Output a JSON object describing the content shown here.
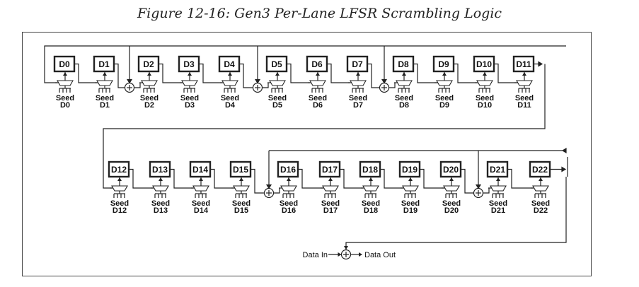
{
  "figure": {
    "caption": "Figure 12-16: Gen3 Per-Lane LFSR Scrambling Logic"
  },
  "registers": [
    {
      "label": "D0",
      "seed_word": "Seed",
      "seed_id": "D0"
    },
    {
      "label": "D1",
      "seed_word": "Seed",
      "seed_id": "D1"
    },
    {
      "label": "D2",
      "seed_word": "Seed",
      "seed_id": "D2"
    },
    {
      "label": "D3",
      "seed_word": "Seed",
      "seed_id": "D3"
    },
    {
      "label": "D4",
      "seed_word": "Seed",
      "seed_id": "D4"
    },
    {
      "label": "D5",
      "seed_word": "Seed",
      "seed_id": "D5"
    },
    {
      "label": "D6",
      "seed_word": "Seed",
      "seed_id": "D6"
    },
    {
      "label": "D7",
      "seed_word": "Seed",
      "seed_id": "D7"
    },
    {
      "label": "D8",
      "seed_word": "Seed",
      "seed_id": "D8"
    },
    {
      "label": "D9",
      "seed_word": "Seed",
      "seed_id": "D9"
    },
    {
      "label": "D10",
      "seed_word": "Seed",
      "seed_id": "D10"
    },
    {
      "label": "D11",
      "seed_word": "Seed",
      "seed_id": "D11"
    },
    {
      "label": "D12",
      "seed_word": "Seed",
      "seed_id": "D12"
    },
    {
      "label": "D13",
      "seed_word": "Seed",
      "seed_id": "D13"
    },
    {
      "label": "D14",
      "seed_word": "Seed",
      "seed_id": "D14"
    },
    {
      "label": "D15",
      "seed_word": "Seed",
      "seed_id": "D15"
    },
    {
      "label": "D16",
      "seed_word": "Seed",
      "seed_id": "D16"
    },
    {
      "label": "D17",
      "seed_word": "Seed",
      "seed_id": "D17"
    },
    {
      "label": "D18",
      "seed_word": "Seed",
      "seed_id": "D18"
    },
    {
      "label": "D19",
      "seed_word": "Seed",
      "seed_id": "D19"
    },
    {
      "label": "D20",
      "seed_word": "Seed",
      "seed_id": "D20"
    },
    {
      "label": "D21",
      "seed_word": "Seed",
      "seed_id": "D21"
    },
    {
      "label": "D22",
      "seed_word": "Seed",
      "seed_id": "D22"
    }
  ],
  "xor_taps_before": [
    "D2",
    "D5",
    "D8",
    "D16",
    "D21"
  ],
  "io": {
    "data_in": "Data In",
    "data_out": "Data Out"
  },
  "colors": {
    "line": "#222222",
    "box_border": "#222222"
  }
}
